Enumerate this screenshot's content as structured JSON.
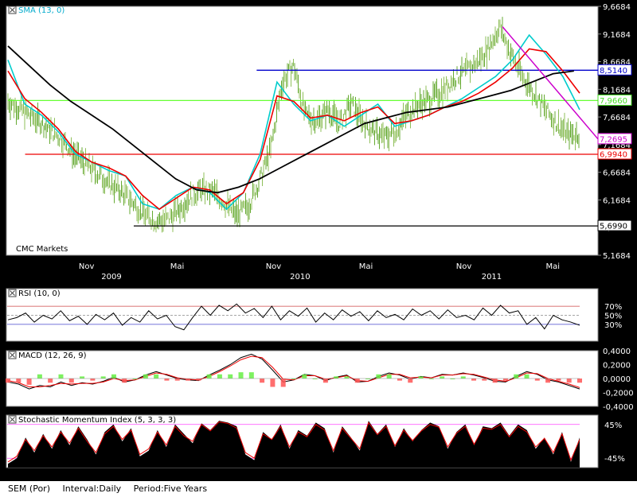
{
  "chart_data": [
    {
      "type": "line",
      "indicator_label": "SMA (13, 0)",
      "watermark": "CMC Markets",
      "x_tick_labels": [
        "Nov",
        "Mai",
        "Nov",
        "Mai",
        "Nov",
        "Mai"
      ],
      "year_labels": [
        "2009",
        "2010",
        "2011"
      ],
      "y_tick_labels": [
        "9,6684",
        "9,1684",
        "8,6684",
        "8,1684",
        "7,6684",
        "7,1684",
        "6,6684",
        "6,1684",
        "5,6684",
        "5,1684"
      ],
      "ylim": [
        5.1684,
        9.6684
      ],
      "levels": [
        {
          "label": "8,5140",
          "value": 8.514,
          "color": "#0000cc"
        },
        {
          "label": "7,9660",
          "value": 7.966,
          "color": "#66ff33"
        },
        {
          "label": "7,2695",
          "value": 7.2695,
          "color": "#cc00cc"
        },
        {
          "label": "6,9940",
          "value": 6.994,
          "color": "#ee0000"
        },
        {
          "label": "5,6990",
          "value": 5.699,
          "color": "#000000"
        }
      ],
      "price_path": [
        [
          0,
          7.95
        ],
        [
          0.03,
          7.75
        ],
        [
          0.06,
          7.55
        ],
        [
          0.09,
          7.3
        ],
        [
          0.12,
          6.95
        ],
        [
          0.15,
          6.7
        ],
        [
          0.18,
          6.45
        ],
        [
          0.2,
          6.3
        ],
        [
          0.22,
          6.1
        ],
        [
          0.24,
          5.9
        ],
        [
          0.26,
          5.78
        ],
        [
          0.28,
          5.82
        ],
        [
          0.3,
          6.0
        ],
        [
          0.32,
          6.25
        ],
        [
          0.34,
          6.35
        ],
        [
          0.36,
          6.3
        ],
        [
          0.38,
          6.1
        ],
        [
          0.4,
          5.9
        ],
        [
          0.42,
          6.05
        ],
        [
          0.44,
          6.5
        ],
        [
          0.46,
          7.1
        ],
        [
          0.48,
          8.3
        ],
        [
          0.5,
          8.6
        ],
        [
          0.52,
          7.7
        ],
        [
          0.54,
          7.6
        ],
        [
          0.56,
          7.8
        ],
        [
          0.58,
          7.55
        ],
        [
          0.6,
          7.9
        ],
        [
          0.62,
          7.6
        ],
        [
          0.64,
          7.4
        ],
        [
          0.66,
          7.3
        ],
        [
          0.68,
          7.45
        ],
        [
          0.7,
          7.75
        ],
        [
          0.72,
          7.9
        ],
        [
          0.74,
          8.0
        ],
        [
          0.76,
          8.15
        ],
        [
          0.78,
          8.35
        ],
        [
          0.8,
          8.5
        ],
        [
          0.82,
          8.65
        ],
        [
          0.84,
          8.9
        ],
        [
          0.86,
          9.3
        ],
        [
          0.88,
          8.8
        ],
        [
          0.9,
          8.4
        ],
        [
          0.92,
          8.1
        ],
        [
          0.94,
          7.8
        ],
        [
          0.96,
          7.55
        ],
        [
          0.98,
          7.35
        ]
      ],
      "series": [
        {
          "color": "#00cccc",
          "values": [
            8.7,
            7.9,
            7.7,
            7.4,
            7.0,
            6.85,
            6.7,
            6.6,
            6.1,
            6.0,
            6.25,
            6.4,
            6.3,
            6.0,
            6.3,
            7.0,
            8.3,
            7.9,
            7.6,
            7.7,
            7.5,
            7.7,
            7.9,
            7.5,
            7.6,
            7.7,
            7.85,
            8.0,
            8.2,
            8.4,
            8.7,
            9.15,
            8.8,
            8.4,
            7.8
          ]
        },
        {
          "color": "#ee0000",
          "values": [
            8.5,
            8.0,
            7.75,
            7.45,
            7.05,
            6.85,
            6.75,
            6.6,
            6.25,
            6.0,
            6.2,
            6.4,
            6.35,
            6.1,
            6.3,
            6.9,
            8.05,
            7.95,
            7.65,
            7.7,
            7.6,
            7.75,
            7.85,
            7.55,
            7.6,
            7.7,
            7.85,
            7.95,
            8.1,
            8.3,
            8.55,
            8.9,
            8.85,
            8.5,
            8.1
          ]
        },
        {
          "color": "#000000",
          "values": [
            8.95,
            8.6,
            8.25,
            7.95,
            7.7,
            7.45,
            7.15,
            6.85,
            6.55,
            6.35,
            6.3,
            6.4,
            6.55,
            6.75,
            6.95,
            7.15,
            7.35,
            7.55,
            7.65,
            7.75,
            7.8,
            7.85,
            7.95,
            8.05,
            8.15,
            8.3,
            8.45,
            8.5
          ]
        }
      ],
      "trendline": {
        "color": "#cc00cc",
        "from": [
          0.865,
          9.3
        ],
        "to": [
          1.0,
          7.27
        ]
      }
    },
    {
      "type": "line",
      "indicator_label": "RSI (10, 0)",
      "y_tick_labels": [
        "70%",
        "50%",
        "30%"
      ],
      "ylim": [
        0,
        100
      ],
      "levels": [
        {
          "value": 70,
          "color": "#cc4444"
        },
        {
          "value": 50,
          "color": "#888888"
        },
        {
          "value": 30,
          "color": "#4444cc"
        }
      ],
      "series": [
        {
          "color": "#000000",
          "values": [
            40,
            45,
            55,
            35,
            50,
            42,
            60,
            38,
            48,
            30,
            52,
            40,
            55,
            28,
            45,
            35,
            60,
            42,
            50,
            25,
            18,
            45,
            70,
            50,
            72,
            60,
            75,
            55,
            65,
            45,
            70,
            40,
            60,
            48,
            66,
            35,
            55,
            40,
            62,
            48,
            58,
            38,
            60,
            45,
            52,
            40,
            64,
            50,
            60,
            42,
            62,
            45,
            50,
            40,
            66,
            50,
            72,
            55,
            60,
            30,
            45,
            20,
            50,
            40,
            35,
            28
          ]
        }
      ]
    },
    {
      "type": "line",
      "indicator_label": "MACD (12, 26, 9)",
      "y_tick_labels": [
        "0,4000",
        "0,2000",
        "0,0000",
        "-0,2000",
        "-0,4000"
      ],
      "ylim": [
        -0.4,
        0.4
      ],
      "series": [
        {
          "color": "#000000",
          "values": [
            -0.05,
            -0.08,
            -0.15,
            -0.1,
            -0.12,
            -0.05,
            -0.1,
            -0.06,
            -0.08,
            -0.04,
            0.02,
            -0.05,
            -0.02,
            0.05,
            0.1,
            0.05,
            0.0,
            -0.02,
            -0.03,
            0.05,
            0.12,
            0.2,
            0.3,
            0.35,
            0.28,
            0.12,
            -0.05,
            -0.02,
            0.06,
            0.04,
            -0.03,
            0.02,
            0.05,
            -0.05,
            -0.04,
            0.03,
            0.08,
            0.05,
            -0.01,
            0.03,
            0.01,
            0.06,
            0.05,
            0.08,
            0.05,
            0.01,
            -0.04,
            -0.05,
            0.03,
            0.1,
            0.06,
            -0.02,
            -0.05,
            -0.1,
            -0.15
          ]
        },
        {
          "color": "#ee0000",
          "values": [
            -0.03,
            -0.06,
            -0.12,
            -0.12,
            -0.1,
            -0.07,
            -0.08,
            -0.07,
            -0.07,
            -0.05,
            0.0,
            -0.03,
            -0.02,
            0.03,
            0.08,
            0.06,
            0.01,
            -0.01,
            -0.02,
            0.03,
            0.1,
            0.18,
            0.27,
            0.32,
            0.3,
            0.16,
            -0.01,
            -0.02,
            0.04,
            0.04,
            -0.01,
            0.01,
            0.04,
            -0.03,
            -0.04,
            0.01,
            0.06,
            0.06,
            0.01,
            0.02,
            0.01,
            0.05,
            0.05,
            0.07,
            0.06,
            0.02,
            -0.02,
            -0.04,
            0.01,
            0.08,
            0.07,
            0.0,
            -0.04,
            -0.08,
            -0.13
          ]
        }
      ]
    },
    {
      "type": "area",
      "indicator_label": "Stochastic Momentum Index (5, 3, 3, 3)",
      "y_tick_labels": [
        "45%",
        "-45%"
      ],
      "ylim": [
        -70,
        70
      ],
      "levels": [
        {
          "value": 45,
          "color": "#ff44ff"
        },
        {
          "value": -45,
          "color": "#ff44ff"
        }
      ],
      "series": [
        {
          "color": "#000000",
          "values": [
            -60,
            -45,
            10,
            -30,
            20,
            -20,
            30,
            -10,
            40,
            5,
            -35,
            25,
            45,
            0,
            35,
            -40,
            -25,
            30,
            -15,
            45,
            20,
            -5,
            48,
            30,
            55,
            50,
            40,
            -35,
            -50,
            25,
            5,
            45,
            -20,
            30,
            15,
            50,
            35,
            -30,
            40,
            10,
            -25,
            55,
            20,
            45,
            -15,
            35,
            0,
            30,
            50,
            40,
            -20,
            25,
            45,
            -10,
            40,
            35,
            50,
            15,
            45,
            30,
            -20,
            10,
            -35,
            25,
            -55,
            10
          ]
        },
        {
          "color": "#ee0000",
          "values": [
            -55,
            -40,
            5,
            -25,
            15,
            -15,
            25,
            -5,
            35,
            0,
            -30,
            20,
            40,
            5,
            30,
            -35,
            -20,
            25,
            -10,
            40,
            15,
            0,
            45,
            28,
            52,
            48,
            35,
            -30,
            -45,
            20,
            5,
            40,
            -15,
            25,
            12,
            45,
            30,
            -25,
            35,
            8,
            -20,
            50,
            18,
            40,
            -12,
            30,
            2,
            28,
            45,
            38,
            -15,
            22,
            40,
            -8,
            35,
            32,
            45,
            12,
            40,
            25,
            -15,
            8,
            -30,
            20,
            -50,
            5
          ]
        }
      ]
    }
  ],
  "footer": {
    "symbol": "SEM (Por)",
    "interval": "Interval:Daily",
    "period": "Period:Five Years"
  }
}
